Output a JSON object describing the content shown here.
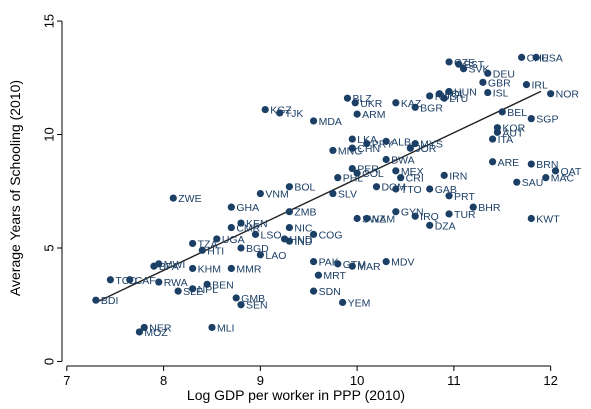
{
  "chart_data": {
    "type": "scatter",
    "xlabel": "Log GDP per worker in PPP (2010)",
    "ylabel": "Average Years of Schooling (2010)",
    "xlim": [
      6.95,
      12.2
    ],
    "ylim": [
      -0.2,
      15.4
    ],
    "xticks": [
      "7",
      "8",
      "9",
      "10",
      "11",
      "12"
    ],
    "yticks": [
      "0",
      "5",
      "10",
      "15"
    ],
    "fit_line": {
      "x": [
        7.3,
        11.9
      ],
      "y": [
        2.6,
        11.9
      ]
    },
    "points": [
      {
        "label": "CHE",
        "x": 11.7,
        "y": 13.4
      },
      {
        "label": "USA",
        "x": 11.85,
        "y": 13.4
      },
      {
        "label": "CZE",
        "x": 10.95,
        "y": 13.2
      },
      {
        "label": "EST",
        "x": 11.05,
        "y": 13.1
      },
      {
        "label": "SVK",
        "x": 11.1,
        "y": 12.9
      },
      {
        "label": "DEU",
        "x": 11.35,
        "y": 12.7
      },
      {
        "label": "GBR",
        "x": 11.3,
        "y": 12.3
      },
      {
        "label": "IRL",
        "x": 11.75,
        "y": 12.2
      },
      {
        "label": "NOR",
        "x": 12.0,
        "y": 11.8
      },
      {
        "label": "POL",
        "x": 10.85,
        "y": 11.8
      },
      {
        "label": "ISL",
        "x": 11.35,
        "y": 11.85
      },
      {
        "label": "LTU",
        "x": 10.9,
        "y": 11.6
      },
      {
        "label": "HUN",
        "x": 10.95,
        "y": 11.9
      },
      {
        "label": "BLZ",
        "x": 9.9,
        "y": 11.6
      },
      {
        "label": "UKR",
        "x": 9.98,
        "y": 11.4
      },
      {
        "label": "RUS",
        "x": 10.75,
        "y": 11.7
      },
      {
        "label": "KAZ",
        "x": 10.4,
        "y": 11.4
      },
      {
        "label": "ARM",
        "x": 10.0,
        "y": 10.9
      },
      {
        "label": "BGR",
        "x": 10.6,
        "y": 11.2
      },
      {
        "label": "KGZ",
        "x": 9.05,
        "y": 11.1
      },
      {
        "label": "TJK",
        "x": 9.2,
        "y": 10.95
      },
      {
        "label": "MDA",
        "x": 9.55,
        "y": 10.6
      },
      {
        "label": "BEL",
        "x": 11.5,
        "y": 11.0
      },
      {
        "label": "SGP",
        "x": 11.8,
        "y": 10.7
      },
      {
        "label": "KOR",
        "x": 11.45,
        "y": 10.3
      },
      {
        "label": "ITA",
        "x": 11.4,
        "y": 9.8
      },
      {
        "label": "AUT",
        "x": 11.45,
        "y": 10.1
      },
      {
        "label": "LKA",
        "x": 9.95,
        "y": 9.8
      },
      {
        "label": "ALB",
        "x": 10.3,
        "y": 9.7
      },
      {
        "label": "CHN",
        "x": 9.95,
        "y": 9.4
      },
      {
        "label": "MNG",
        "x": 9.75,
        "y": 9.3
      },
      {
        "label": "JOR",
        "x": 10.55,
        "y": 9.4
      },
      {
        "label": "MYS",
        "x": 10.6,
        "y": 9.6
      },
      {
        "label": "PRY",
        "x": 10.1,
        "y": 9.6
      },
      {
        "label": "BWA",
        "x": 10.3,
        "y": 8.9
      },
      {
        "label": "ARE",
        "x": 11.4,
        "y": 8.8
      },
      {
        "label": "BRN",
        "x": 11.8,
        "y": 8.7
      },
      {
        "label": "QAT",
        "x": 12.05,
        "y": 8.4
      },
      {
        "label": "MAC",
        "x": 11.95,
        "y": 8.1
      },
      {
        "label": "SAU",
        "x": 11.65,
        "y": 7.9
      },
      {
        "label": "PER",
        "x": 9.95,
        "y": 8.5
      },
      {
        "label": "PHL",
        "x": 9.8,
        "y": 8.1
      },
      {
        "label": "COL",
        "x": 10.0,
        "y": 8.3
      },
      {
        "label": "MEX",
        "x": 10.4,
        "y": 8.4
      },
      {
        "label": "IRN",
        "x": 10.9,
        "y": 8.2
      },
      {
        "label": "CRI",
        "x": 10.45,
        "y": 8.1
      },
      {
        "label": "GAB",
        "x": 10.75,
        "y": 7.6
      },
      {
        "label": "PRT",
        "x": 10.95,
        "y": 7.3
      },
      {
        "label": "BHR",
        "x": 11.2,
        "y": 6.8
      },
      {
        "label": "TUR",
        "x": 10.95,
        "y": 6.5
      },
      {
        "label": "KWT",
        "x": 11.8,
        "y": 6.3
      },
      {
        "label": "DZA",
        "x": 10.75,
        "y": 6.0
      },
      {
        "label": "IRQ",
        "x": 10.6,
        "y": 6.4
      },
      {
        "label": "GYN",
        "x": 10.4,
        "y": 6.6
      },
      {
        "label": "SWZ",
        "x": 10.0,
        "y": 6.3
      },
      {
        "label": "NAM",
        "x": 10.1,
        "y": 6.3
      },
      {
        "label": "DOM",
        "x": 10.2,
        "y": 7.7
      },
      {
        "label": "TTO",
        "x": 10.4,
        "y": 7.6
      },
      {
        "label": "BOL",
        "x": 9.3,
        "y": 7.7
      },
      {
        "label": "VNM",
        "x": 9.0,
        "y": 7.4
      },
      {
        "label": "SLV",
        "x": 9.75,
        "y": 7.4
      },
      {
        "label": "ZWE",
        "x": 8.1,
        "y": 7.2
      },
      {
        "label": "GHA",
        "x": 8.7,
        "y": 6.8
      },
      {
        "label": "ZMB",
        "x": 9.3,
        "y": 6.6
      },
      {
        "label": "KEN",
        "x": 8.8,
        "y": 6.1
      },
      {
        "label": "CMR",
        "x": 8.7,
        "y": 5.9
      },
      {
        "label": "NIC",
        "x": 9.3,
        "y": 5.9
      },
      {
        "label": "COG",
        "x": 9.55,
        "y": 5.6
      },
      {
        "label": "UGA",
        "x": 8.55,
        "y": 5.4
      },
      {
        "label": "LSO",
        "x": 8.95,
        "y": 5.6
      },
      {
        "label": "HND",
        "x": 9.25,
        "y": 5.4
      },
      {
        "label": "BGD",
        "x": 8.8,
        "y": 5.0
      },
      {
        "label": "IND",
        "x": 9.3,
        "y": 5.3
      },
      {
        "label": "TZA",
        "x": 8.3,
        "y": 5.2
      },
      {
        "label": "HTI",
        "x": 8.4,
        "y": 4.9
      },
      {
        "label": "LAO",
        "x": 9.0,
        "y": 4.7
      },
      {
        "label": "KHM",
        "x": 8.3,
        "y": 4.1
      },
      {
        "label": "MMR",
        "x": 8.7,
        "y": 4.1
      },
      {
        "label": "GMB",
        "x": 8.75,
        "y": 2.8
      },
      {
        "label": "SEN",
        "x": 8.8,
        "y": 2.5
      },
      {
        "label": "PAK",
        "x": 9.55,
        "y": 4.4
      },
      {
        "label": "GTM",
        "x": 9.8,
        "y": 4.3
      },
      {
        "label": "MAR",
        "x": 9.95,
        "y": 4.2
      },
      {
        "label": "MDV",
        "x": 10.3,
        "y": 4.4
      },
      {
        "label": "MRT",
        "x": 9.6,
        "y": 3.8
      },
      {
        "label": "SDN",
        "x": 9.55,
        "y": 3.1
      },
      {
        "label": "YEM",
        "x": 9.85,
        "y": 2.6
      },
      {
        "label": "BFA",
        "x": 7.9,
        "y": 4.2
      },
      {
        "label": "MWI",
        "x": 7.95,
        "y": 4.3
      },
      {
        "label": "TCD",
        "x": 7.45,
        "y": 3.6
      },
      {
        "label": "CAF",
        "x": 7.65,
        "y": 3.6
      },
      {
        "label": "RWA",
        "x": 7.95,
        "y": 3.5
      },
      {
        "label": "SLE",
        "x": 8.15,
        "y": 3.1
      },
      {
        "label": "NPL",
        "x": 8.3,
        "y": 3.2
      },
      {
        "label": "BEN",
        "x": 8.45,
        "y": 3.4
      },
      {
        "label": "BDI",
        "x": 7.3,
        "y": 2.7
      },
      {
        "label": "NER",
        "x": 7.8,
        "y": 1.5
      },
      {
        "label": "MOZ",
        "x": 7.75,
        "y": 1.3
      },
      {
        "label": "MLI",
        "x": 8.5,
        "y": 1.5
      }
    ]
  }
}
